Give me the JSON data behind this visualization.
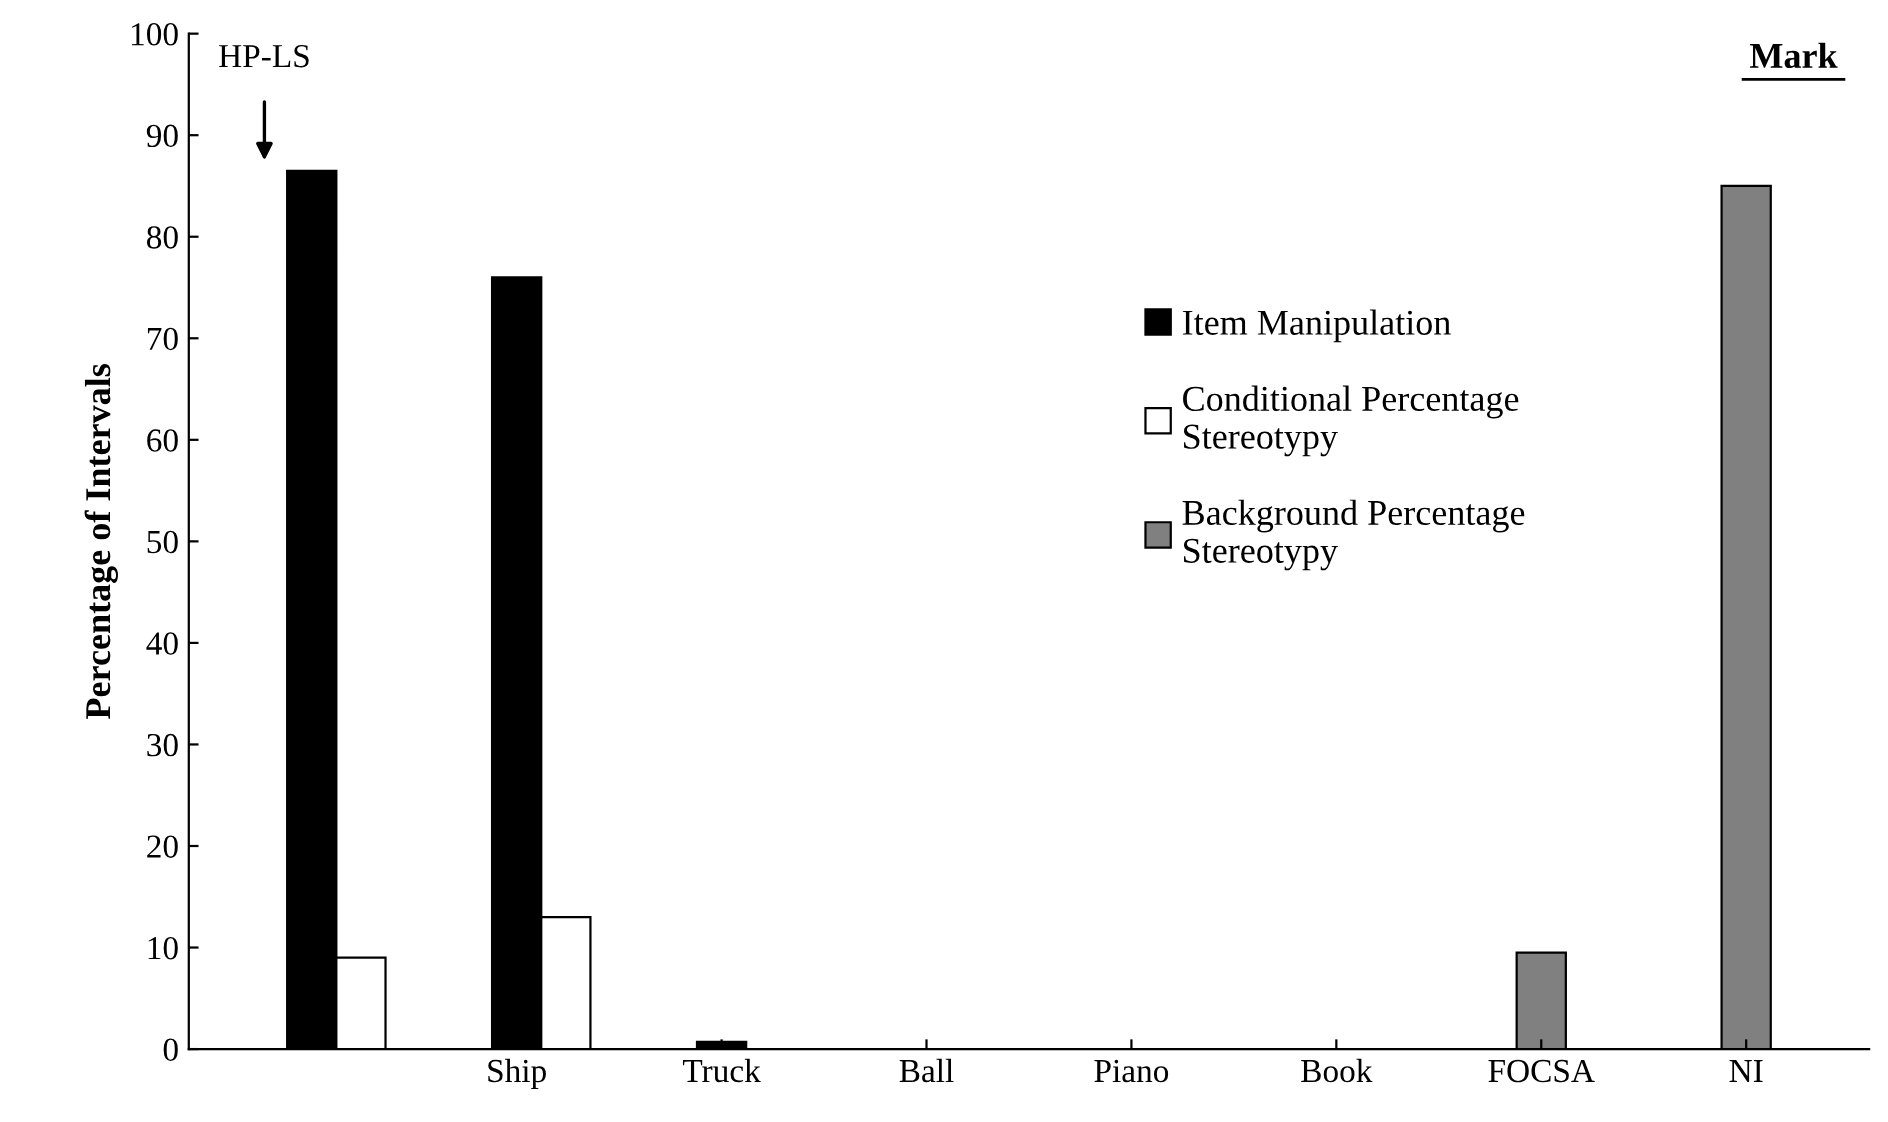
{
  "chart_data": {
    "type": "bar",
    "ylabel": "Percentage of Intervals",
    "categories": [
      null,
      "Ship",
      "Truck",
      "Ball",
      "Piano",
      "Book",
      "FOCSA",
      "NI"
    ],
    "series": [
      {
        "name": "Item Manipulation",
        "color": "#000000",
        "values": [
          86.5,
          76,
          0.7,
          null,
          null,
          null,
          null,
          null
        ]
      },
      {
        "name": "Conditional Percentage\nStereotypy",
        "color": "#ffffff",
        "values": [
          9,
          13,
          null,
          null,
          null,
          null,
          null,
          null
        ]
      },
      {
        "name": "Background Percentage\nStereotypy",
        "color": "#808080",
        "values": [
          null,
          null,
          null,
          null,
          null,
          null,
          9.5,
          85
        ]
      }
    ],
    "ylim": [
      0,
      100
    ],
    "yticks": [
      0,
      10,
      20,
      30,
      40,
      50,
      60,
      70,
      80,
      90,
      100
    ],
    "grid": false,
    "legend": "right",
    "annotations": [
      "HP-LS",
      "Mark"
    ]
  }
}
